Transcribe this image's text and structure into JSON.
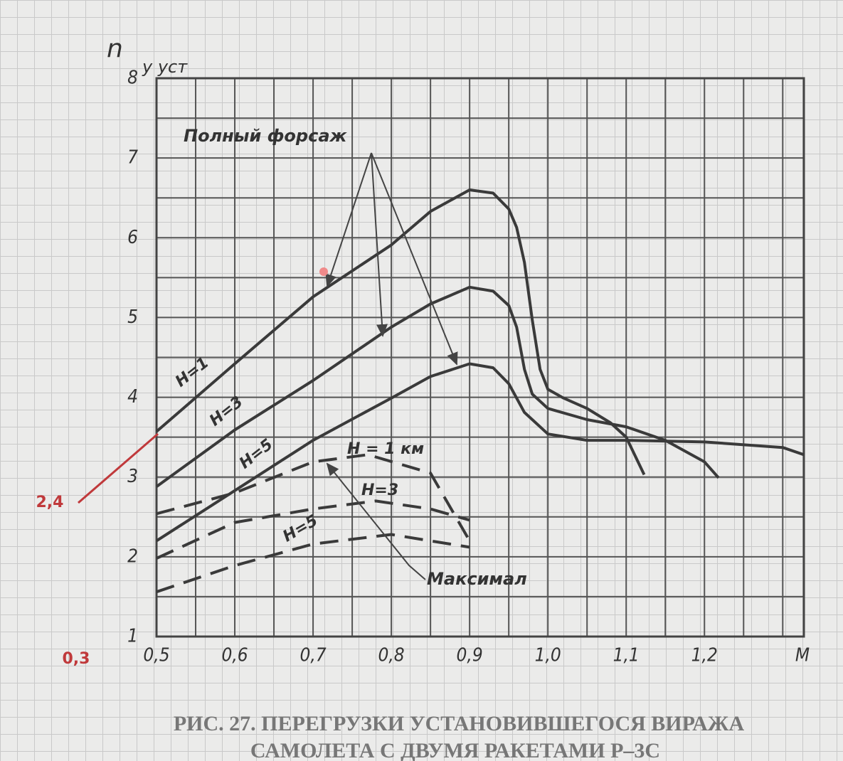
{
  "chart_data": {
    "type": "line",
    "ylabel": "n",
    "ylabel_sub": "y уст",
    "xlabel": "M",
    "xlim": [
      0.5,
      1.327
    ],
    "ylim": [
      1,
      8
    ],
    "xticks": [
      {
        "value": 0.5,
        "label": "0,5"
      },
      {
        "value": 0.6,
        "label": "0,6"
      },
      {
        "value": 0.7,
        "label": "0,7"
      },
      {
        "value": 0.8,
        "label": "0,8"
      },
      {
        "value": 0.9,
        "label": "0,9"
      },
      {
        "value": 1.0,
        "label": "1,0"
      },
      {
        "value": 1.1,
        "label": "1,1"
      },
      {
        "value": 1.2,
        "label": "1,2"
      }
    ],
    "yticks": [
      1,
      2,
      3,
      4,
      5,
      6,
      7,
      8
    ],
    "grid": true,
    "group_labels": [
      "Полный форсаж",
      "Максимал"
    ],
    "annotations": [
      "2,4",
      "0,3"
    ],
    "caption": [
      "РИС. 27. ПЕРЕГРУЗКИ УСТАНОВИВШЕГОСЯ ВИРАЖА",
      "САМОЛЕТА С ДВУМЯ РАКЕТАМИ Р–3С"
    ],
    "series": [
      {
        "name": "H=1",
        "color": "#3a3a3a",
        "dashed": false,
        "x": [
          0.5,
          0.6,
          0.7,
          0.8,
          0.85,
          0.9,
          0.93,
          0.95,
          0.96,
          0.97,
          0.98,
          0.99,
          1.0,
          1.02,
          1.05,
          1.08,
          1.1,
          1.123
        ],
        "values": [
          3.57,
          4.42,
          5.26,
          5.91,
          6.33,
          6.6,
          6.56,
          6.36,
          6.13,
          5.69,
          4.97,
          4.35,
          4.1,
          3.99,
          3.86,
          3.68,
          3.5,
          3.03
        ]
      },
      {
        "name": "H=3",
        "color": "#3a3a3a",
        "dashed": false,
        "x": [
          0.5,
          0.6,
          0.7,
          0.8,
          0.85,
          0.9,
          0.93,
          0.95,
          0.96,
          0.97,
          0.98,
          1.0,
          1.05,
          1.1,
          1.15,
          1.2,
          1.218
        ],
        "values": [
          2.88,
          3.59,
          4.21,
          4.88,
          5.17,
          5.38,
          5.33,
          5.15,
          4.88,
          4.35,
          4.04,
          3.86,
          3.72,
          3.63,
          3.46,
          3.19,
          2.99
        ]
      },
      {
        "name": "H=5",
        "color": "#3a3a3a",
        "dashed": false,
        "x": [
          0.5,
          0.6,
          0.7,
          0.8,
          0.85,
          0.9,
          0.93,
          0.95,
          0.97,
          1.0,
          1.05,
          1.1,
          1.2,
          1.3,
          1.327
        ],
        "values": [
          2.2,
          2.83,
          3.46,
          3.99,
          4.26,
          4.42,
          4.37,
          4.17,
          3.81,
          3.54,
          3.46,
          3.46,
          3.44,
          3.37,
          3.28
        ]
      },
      {
        "name": "H = 1 км",
        "color": "#3a3a3a",
        "dashed": true,
        "x": [
          0.5,
          0.6,
          0.7,
          0.77,
          0.85,
          0.9
        ],
        "values": [
          2.54,
          2.8,
          3.19,
          3.28,
          3.05,
          2.2
        ]
      },
      {
        "name": "H=3",
        "color": "#3a3a3a",
        "dashed": true,
        "x": [
          0.5,
          0.6,
          0.7,
          0.78,
          0.85,
          0.9
        ],
        "values": [
          1.98,
          2.43,
          2.6,
          2.7,
          2.6,
          2.46
        ]
      },
      {
        "name": "H=5",
        "color": "#3a3a3a",
        "dashed": true,
        "x": [
          0.5,
          0.6,
          0.7,
          0.8,
          0.9
        ],
        "values": [
          1.56,
          1.89,
          2.16,
          2.28,
          2.12
        ]
      }
    ]
  }
}
